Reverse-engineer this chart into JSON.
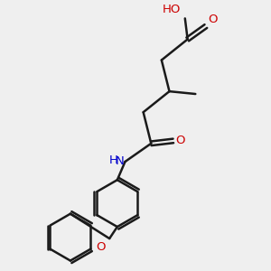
{
  "bg_color": "#efefef",
  "bond_color": "#1a1a1a",
  "oxygen_color": "#cc0000",
  "nitrogen_color": "#0000cc",
  "line_width": 1.8,
  "figsize": [
    3.0,
    3.0
  ],
  "dpi": 100,
  "xlim": [
    0,
    10
  ],
  "ylim": [
    0,
    10
  ]
}
